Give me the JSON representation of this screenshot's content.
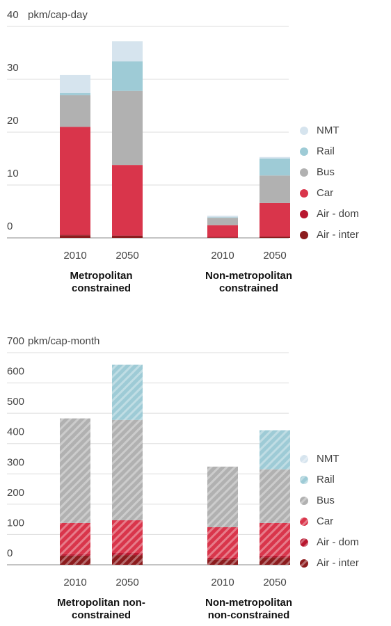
{
  "chart_data": [
    {
      "type": "bar",
      "stacked": true,
      "y_label": "pkm/cap-day",
      "categories": [
        "2010",
        "2050",
        "2010",
        "2050"
      ],
      "groups": [
        "Metropolitan constrained",
        "Non-metropolitan constrained"
      ],
      "ylim": [
        0,
        40
      ],
      "yticks": [
        0,
        10,
        20,
        30,
        40
      ],
      "grid": true,
      "hatch": false,
      "legend": "right",
      "series": [
        {
          "name": "Air - inter",
          "color": "#8c1c1e",
          "values": [
            0.5,
            0.4,
            0.1,
            0.2
          ]
        },
        {
          "name": "Air - dom",
          "color": "#b8172f",
          "values": [
            0.1,
            0.1,
            0.1,
            0.1
          ]
        },
        {
          "name": "Car",
          "color": "#d9354b",
          "values": [
            20.4,
            13.3,
            2.2,
            6.3
          ]
        },
        {
          "name": "Bus",
          "color": "#b1b1b1",
          "values": [
            6.0,
            14.0,
            1.4,
            5.2
          ]
        },
        {
          "name": "Rail",
          "color": "#9ecbd6",
          "values": [
            0.4,
            5.6,
            0.1,
            3.2
          ]
        },
        {
          "name": "NMT",
          "color": "#d6e4ee",
          "values": [
            3.4,
            3.8,
            0.3,
            0.3
          ]
        }
      ]
    },
    {
      "type": "bar",
      "stacked": true,
      "y_label": "pkm/cap-month",
      "categories": [
        "2010",
        "2050",
        "2010",
        "2050"
      ],
      "groups": [
        "Metropolitan non-constrained",
        "Non-metropolitan non-constrained"
      ],
      "ylim": [
        0,
        700
      ],
      "yticks": [
        0,
        100,
        200,
        300,
        400,
        500,
        600,
        700
      ],
      "grid": true,
      "hatch": true,
      "legend": "right",
      "series": [
        {
          "name": "Air - inter",
          "color": "#8c1c1e",
          "values": [
            30,
            32,
            18,
            24
          ]
        },
        {
          "name": "Air - dom",
          "color": "#b8172f",
          "values": [
            5,
            7,
            5,
            6
          ]
        },
        {
          "name": "Car",
          "color": "#d9354b",
          "values": [
            103,
            108,
            101,
            108
          ]
        },
        {
          "name": "Bus",
          "color": "#b1b1b1",
          "values": [
            345,
            331,
            200,
            177
          ]
        },
        {
          "name": "Rail",
          "color": "#9ecbd6",
          "values": [
            0,
            182,
            0,
            129
          ]
        },
        {
          "name": "NMT",
          "color": "#d6e4ee",
          "values": [
            0,
            0,
            0,
            0
          ]
        }
      ]
    }
  ]
}
